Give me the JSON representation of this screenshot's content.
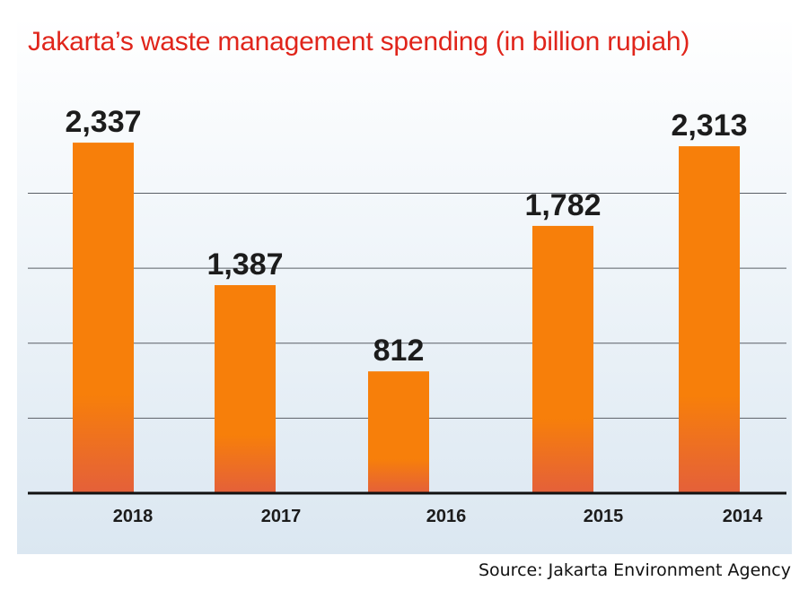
{
  "chart_data": {
    "type": "bar",
    "title": "Jakarta’s waste management spending (in billion rupiah)",
    "categories": [
      "2018",
      "2017",
      "2016",
      "2015",
      "2014"
    ],
    "values": [
      2337,
      1387,
      812,
      1782,
      2313
    ],
    "value_labels": [
      "2,337",
      "1,387",
      "812",
      "1,782",
      "2,313"
    ],
    "ylim": [
      0,
      2750
    ],
    "grid": true,
    "bar_color": "#f77f0a",
    "bar_base_color": "#e4603a"
  },
  "source": "Source: Jakarta Environment Agency"
}
